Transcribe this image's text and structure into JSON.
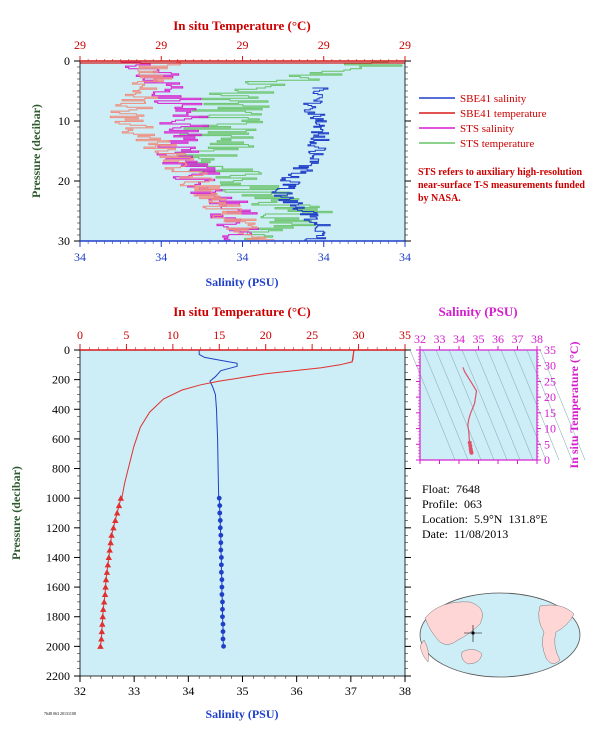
{
  "top_panel": {
    "title_top": "In situ Temperature (°C)",
    "ylabel": "Pressure (decibar)",
    "xlabel_bottom": "Salinity (PSU)",
    "top_ticks": [
      "29",
      "29",
      "29",
      "29",
      "29"
    ],
    "bottom_ticks": [
      "34",
      "34",
      "34",
      "34",
      "34"
    ],
    "y_ticks": [
      "0",
      "10",
      "20",
      "30"
    ]
  },
  "legend": [
    {
      "label": "SBE41 salinity",
      "color": "#1f3fc8"
    },
    {
      "label": "SBE41 temperature",
      "color": "#d81b1b"
    },
    {
      "label": "STS salinity",
      "color": "#d61ccf"
    },
    {
      "label": "STS temperature",
      "color": "#66c266"
    }
  ],
  "note": "STS refers to auxiliary high-resolution near-surface T-S measurements funded by NASA.",
  "bottom_panel": {
    "title_top": "In situ Temperature (°C)",
    "ylabel": "Pressure (decibar)",
    "xlabel_bottom": "Salinity (PSU)",
    "top_ticks": [
      "0",
      "5",
      "10",
      "15",
      "20",
      "25",
      "30",
      "35"
    ],
    "bottom_ticks": [
      "32",
      "33",
      "34",
      "35",
      "36",
      "37",
      "38"
    ],
    "y_ticks": [
      "0",
      "200",
      "400",
      "600",
      "800",
      "1000",
      "1200",
      "1400",
      "1600",
      "1800",
      "2000",
      "2200"
    ]
  },
  "ts_panel": {
    "title": "Salinity (PSU)",
    "ylabel": "In situ Temperature (°C)",
    "x_ticks": [
      "32",
      "33",
      "34",
      "35",
      "36",
      "37",
      "38"
    ],
    "y_ticks": [
      "35",
      "30",
      "25",
      "20",
      "15",
      "10",
      "5",
      "0"
    ]
  },
  "float_info": {
    "float_label": "Float:",
    "float_value": "7648",
    "profile_label": "Profile:",
    "profile_value": "063",
    "location_label": "Location:",
    "location_value": "5.9°N  131.8°E",
    "date_label": "Date:",
    "date_value": "11/08/2013"
  },
  "footer_tiny": "7648 063 20131108",
  "chart_data": [
    {
      "type": "line",
      "title": "",
      "xlabel": "Salinity (PSU)",
      "x2label": "In situ Temperature (°C)",
      "ylabel": "Pressure (decibar)",
      "xlim": [
        32,
        38
      ],
      "x2lim": [
        0,
        35
      ],
      "ylim": [
        2200,
        0
      ],
      "series": [
        {
          "name": "salinity",
          "color": "#1f3fc8",
          "axis": "salinity",
          "points": [
            [
              34.2,
              0
            ],
            [
              34.2,
              30
            ],
            [
              34.3,
              50
            ],
            [
              34.6,
              70
            ],
            [
              34.9,
              90
            ],
            [
              34.9,
              110
            ],
            [
              34.6,
              140
            ],
            [
              34.5,
              180
            ],
            [
              34.4,
              210
            ],
            [
              34.45,
              250
            ],
            [
              34.5,
              300
            ],
            [
              34.52,
              400
            ],
            [
              34.53,
              500
            ],
            [
              34.54,
              600
            ],
            [
              34.55,
              800
            ],
            [
              34.56,
              1000
            ]
          ]
        },
        {
          "name": "salinity_bottle",
          "color": "#1f3fc8",
          "axis": "salinity",
          "marker": "circle",
          "points": [
            [
              34.57,
              1000
            ],
            [
              34.58,
              1050
            ],
            [
              34.58,
              1100
            ],
            [
              34.59,
              1150
            ],
            [
              34.59,
              1200
            ],
            [
              34.6,
              1250
            ],
            [
              34.6,
              1300
            ],
            [
              34.6,
              1350
            ],
            [
              34.61,
              1400
            ],
            [
              34.61,
              1450
            ],
            [
              34.61,
              1500
            ],
            [
              34.62,
              1550
            ],
            [
              34.62,
              1600
            ],
            [
              34.62,
              1650
            ],
            [
              34.63,
              1700
            ],
            [
              34.63,
              1750
            ],
            [
              34.63,
              1800
            ],
            [
              34.64,
              1850
            ],
            [
              34.64,
              1900
            ],
            [
              34.64,
              1950
            ],
            [
              34.65,
              2000
            ]
          ]
        },
        {
          "name": "temperature",
          "color": "#e03030",
          "axis": "temperature",
          "points": [
            [
              29.5,
              0
            ],
            [
              29.4,
              60
            ],
            [
              29.3,
              80
            ],
            [
              28,
              100
            ],
            [
              26,
              120
            ],
            [
              23,
              140
            ],
            [
              20,
              160
            ],
            [
              17,
              190
            ],
            [
              15,
              210
            ],
            [
              13,
              235
            ],
            [
              11,
              270
            ],
            [
              9,
              330
            ],
            [
              7.5,
              420
            ],
            [
              6.5,
              520
            ],
            [
              5.8,
              650
            ],
            [
              5.2,
              800
            ],
            [
              4.8,
              900
            ],
            [
              4.5,
              1000
            ]
          ]
        },
        {
          "name": "temperature_bottle",
          "color": "#e03030",
          "axis": "temperature",
          "marker": "triangle",
          "points": [
            [
              4.4,
              1000
            ],
            [
              4.2,
              1050
            ],
            [
              4.0,
              1100
            ],
            [
              3.8,
              1150
            ],
            [
              3.6,
              1200
            ],
            [
              3.4,
              1250
            ],
            [
              3.3,
              1300
            ],
            [
              3.2,
              1350
            ],
            [
              3.1,
              1400
            ],
            [
              3.0,
              1450
            ],
            [
              2.9,
              1500
            ],
            [
              2.8,
              1550
            ],
            [
              2.75,
              1600
            ],
            [
              2.7,
              1650
            ],
            [
              2.6,
              1700
            ],
            [
              2.5,
              1750
            ],
            [
              2.45,
              1800
            ],
            [
              2.4,
              1850
            ],
            [
              2.35,
              1900
            ],
            [
              2.3,
              1950
            ],
            [
              2.2,
              2000
            ]
          ]
        }
      ]
    },
    {
      "type": "scatter",
      "title": "",
      "xlabel": "Salinity (PSU)",
      "ylabel": "In situ Temperature (°C)",
      "xlim": [
        32,
        38
      ],
      "ylim": [
        0,
        35
      ],
      "series": [
        {
          "name": "ts",
          "color": "#e0506a",
          "points": [
            [
              34.2,
              29.5
            ],
            [
              34.3,
              28
            ],
            [
              34.6,
              25
            ],
            [
              34.9,
              22
            ],
            [
              34.8,
              18
            ],
            [
              34.6,
              15
            ],
            [
              34.5,
              13
            ],
            [
              34.45,
              11
            ],
            [
              34.5,
              9
            ],
            [
              34.52,
              7
            ],
            [
              34.55,
              5.5
            ],
            [
              34.58,
              4.5
            ],
            [
              34.6,
              3.5
            ],
            [
              34.62,
              2.8
            ],
            [
              34.64,
              2.3
            ]
          ]
        }
      ]
    }
  ]
}
